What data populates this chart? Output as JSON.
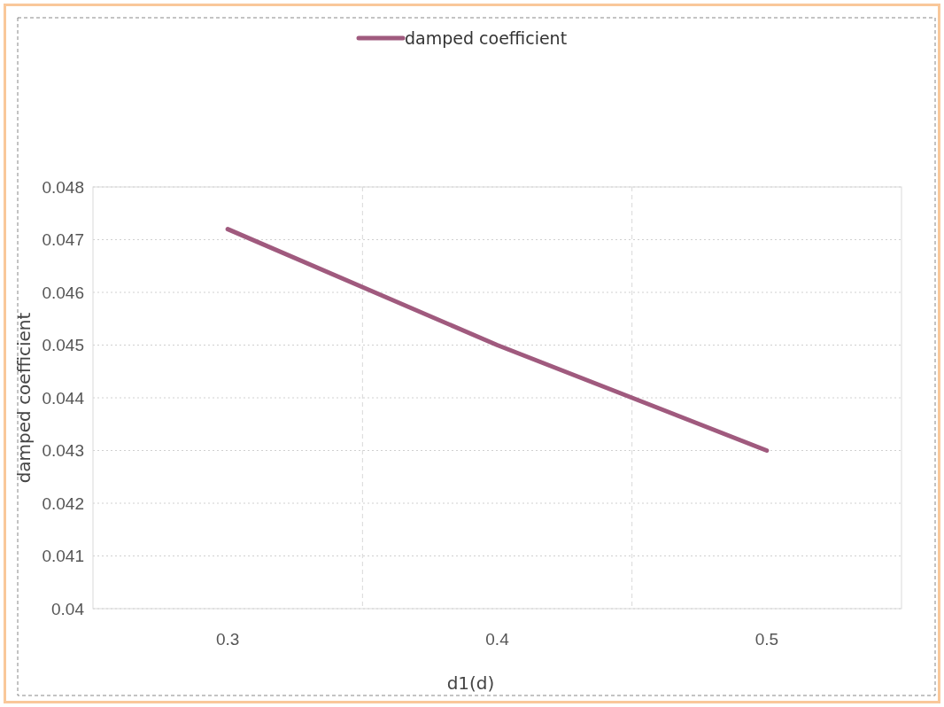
{
  "chart_data": {
    "type": "line",
    "xlabel": "d1(d)",
    "ylabel": "damped coefficient",
    "categories": [
      "0.3",
      "0.4",
      "0.5"
    ],
    "series": [
      {
        "name": "damped coefficient",
        "color": "#a05a7e",
        "values": [
          0.0472,
          0.045,
          0.043
        ]
      }
    ],
    "ylim": [
      0.04,
      0.048
    ],
    "yticks": [
      0.04,
      0.041,
      0.042,
      0.043,
      0.044,
      0.045,
      0.046,
      0.047,
      0.048
    ],
    "grid": true,
    "legend": "top",
    "marker": "none",
    "line_style": "solid"
  }
}
